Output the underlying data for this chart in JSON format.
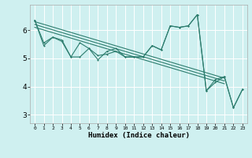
{
  "title": "",
  "xlabel": "Humidex (Indice chaleur)",
  "bg_color": "#cff0f0",
  "grid_color": "#ffffff",
  "line_color": "#2d7d6e",
  "xlim": [
    -0.5,
    23.5
  ],
  "ylim": [
    2.7,
    6.9
  ],
  "xticks": [
    0,
    1,
    2,
    3,
    4,
    5,
    6,
    7,
    8,
    9,
    10,
    11,
    12,
    13,
    14,
    15,
    16,
    17,
    18,
    19,
    20,
    21,
    22,
    23
  ],
  "yticks": [
    3,
    4,
    5,
    6
  ],
  "lw": 0.8,
  "msize": 2.0,
  "series": [
    {
      "x": [
        0,
        1,
        2,
        3,
        4,
        5,
        6,
        7,
        8,
        9,
        10,
        11,
        12,
        13,
        14,
        15,
        16,
        17,
        18,
        19,
        20,
        21,
        22,
        23
      ],
      "y": [
        6.35,
        5.55,
        5.75,
        5.65,
        5.05,
        5.05,
        5.35,
        4.95,
        5.25,
        5.35,
        5.05,
        5.05,
        5.05,
        5.45,
        5.3,
        6.15,
        6.1,
        6.15,
        6.55,
        3.85,
        4.25,
        4.35,
        3.25,
        3.9
      ],
      "marker": true
    },
    {
      "x": [
        0,
        1,
        2,
        3,
        4,
        5,
        6,
        7,
        8,
        9,
        10,
        11,
        12,
        13,
        14,
        15,
        16,
        17,
        18,
        19,
        20,
        21,
        22,
        23
      ],
      "y": [
        6.35,
        5.45,
        5.75,
        5.6,
        5.05,
        5.55,
        5.35,
        5.1,
        5.15,
        5.25,
        5.05,
        5.05,
        5.05,
        5.45,
        5.3,
        6.15,
        6.1,
        6.15,
        6.55,
        3.85,
        4.15,
        4.35,
        3.25,
        3.9
      ],
      "marker": true
    },
    {
      "x": [
        0,
        21
      ],
      "y": [
        6.3,
        4.3
      ],
      "marker": false
    },
    {
      "x": [
        0,
        21
      ],
      "y": [
        6.2,
        4.2
      ],
      "marker": false
    },
    {
      "x": [
        0,
        21
      ],
      "y": [
        6.1,
        4.1
      ],
      "marker": false
    }
  ]
}
